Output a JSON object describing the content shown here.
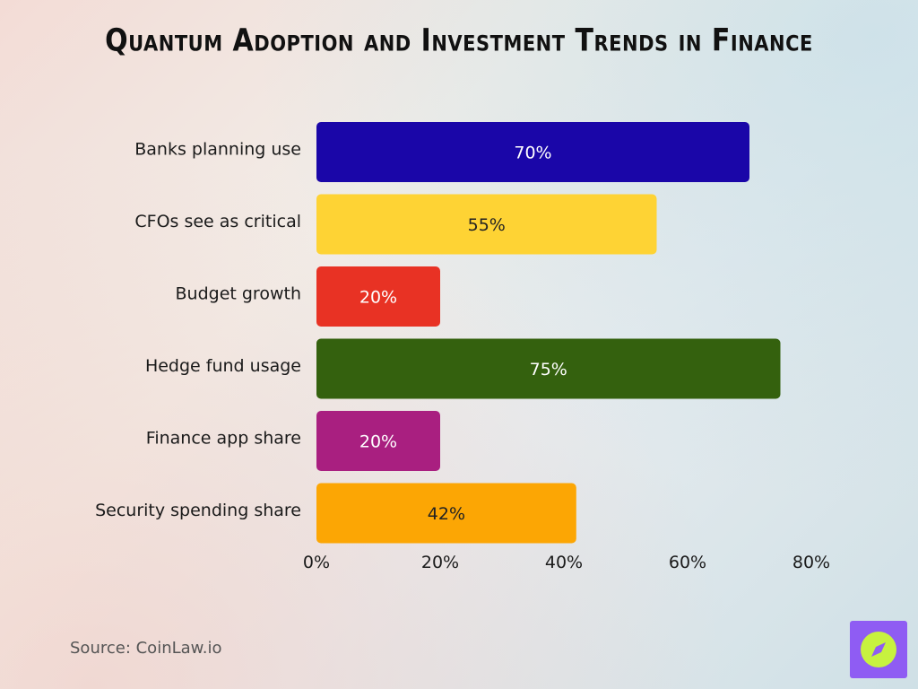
{
  "title": "Quantum Adoption and Investment Trends in Finance",
  "source": "Source: CoinLaw.io",
  "chart_data": {
    "type": "bar",
    "orientation": "horizontal",
    "title": "Quantum Adoption and Investment Trends in Finance",
    "categories": [
      "Banks planning use",
      "CFOs see as critical",
      "Budget growth",
      "Hedge fund usage",
      "Finance app share",
      "Security spending share"
    ],
    "values": [
      70,
      55,
      20,
      75,
      20,
      42
    ],
    "data_labels": [
      "70%",
      "55%",
      "20%",
      "75%",
      "20%",
      "42%"
    ],
    "colors": [
      "#1a06a8",
      "#fed334",
      "#e83224",
      "#34610e",
      "#a91f80",
      "#fca604"
    ],
    "label_colors": [
      "#ffffff",
      "#222222",
      "#ffffff",
      "#ffffff",
      "#ffffff",
      "#222222"
    ],
    "xlim": [
      0,
      80
    ],
    "xticks": [
      0,
      20,
      40,
      60,
      80
    ],
    "xtick_labels": [
      "0%",
      "20%",
      "40%",
      "60%",
      "80%"
    ],
    "grid": false,
    "legend": "none"
  },
  "logo": {
    "icon": "compass-icon",
    "bg": "#8f5cf3",
    "fg": "#c7f23f"
  }
}
